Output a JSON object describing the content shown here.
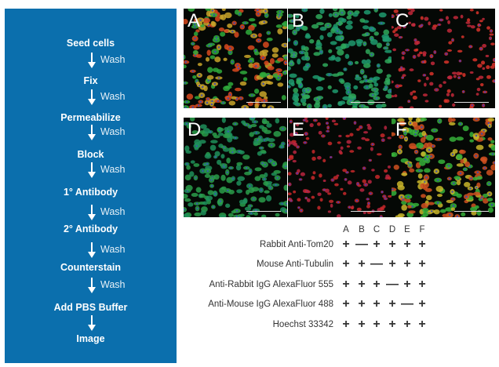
{
  "workflow": {
    "background_color": "#0b6fad",
    "steps": [
      "Seed cells",
      "Fix",
      "Permeabilize",
      "Block",
      "1° Antibody",
      "2° Antibody",
      "Counterstain",
      "Add PBS Buffer",
      "Image"
    ],
    "transitions": [
      "Wash",
      "Wash",
      "Wash",
      "Wash",
      "Wash",
      "Wash",
      "Wash",
      ""
    ]
  },
  "panels": [
    {
      "label": "A",
      "colors": [
        "#2faa3c",
        "#d8491f",
        "#c9a42a",
        "#3b49b8"
      ]
    },
    {
      "label": "B",
      "colors": [
        "#2fa85a",
        "#1f9a6e",
        "#3b5fb8"
      ]
    },
    {
      "label": "C",
      "colors": [
        "#d8322a",
        "#c2283a",
        "#4a3cb8"
      ]
    },
    {
      "label": "D",
      "colors": [
        "#2a9c4a",
        "#1e8f5a",
        "#3859b5"
      ]
    },
    {
      "label": "E",
      "colors": [
        "#c8282a",
        "#b82540",
        "#4a3cb8"
      ]
    },
    {
      "label": "F",
      "colors": [
        "#36b03a",
        "#c9b52a",
        "#d05020",
        "#3b49b8"
      ]
    }
  ],
  "table": {
    "columns": [
      "A",
      "B",
      "C",
      "D",
      "E",
      "F"
    ],
    "rows": [
      {
        "label": "Rabbit Anti-Tom20",
        "values": [
          "+",
          "—",
          "+",
          "+",
          "+",
          "+"
        ]
      },
      {
        "label": "Mouse Anti-Tubulin",
        "values": [
          "+",
          "+",
          "—",
          "+",
          "+",
          "+"
        ]
      },
      {
        "label": "Anti-Rabbit IgG AlexaFluor 555",
        "values": [
          "+",
          "+",
          "+",
          "—",
          "+",
          "+"
        ]
      },
      {
        "label": "Anti-Mouse IgG AlexaFluor 488",
        "values": [
          "+",
          "+",
          "+",
          "+",
          "—",
          "+"
        ]
      },
      {
        "label": "Hoechst 33342",
        "values": [
          "+",
          "+",
          "+",
          "+",
          "+",
          "+"
        ]
      }
    ]
  }
}
